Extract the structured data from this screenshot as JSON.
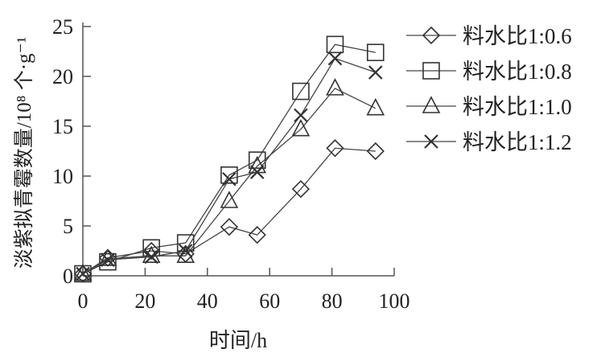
{
  "chart_data": {
    "type": "line",
    "title": "",
    "xlabel": "时间/h",
    "ylabel": "淡紫拟青霉数量/10⁸ 个·g⁻¹",
    "xlim": [
      0,
      100
    ],
    "ylim": [
      0,
      25
    ],
    "xticks": [
      "0",
      "20",
      "40",
      "60",
      "80",
      "100"
    ],
    "yticks": [
      "0",
      "5",
      "10",
      "15",
      "20",
      "25"
    ],
    "grid": false,
    "legend_position": "right",
    "x": [
      0,
      8,
      22,
      33,
      47,
      56,
      70,
      81,
      94
    ],
    "series": [
      {
        "name": "料水比1:0.6",
        "marker": "diamond",
        "values": [
          0.2,
          1.8,
          2.5,
          2.2,
          4.9,
          4.1,
          8.7,
          12.8,
          12.5
        ]
      },
      {
        "name": "料水比1:0.8",
        "marker": "square",
        "values": [
          0.2,
          1.4,
          2.8,
          3.3,
          10.1,
          11.6,
          18.5,
          23.2,
          22.4
        ]
      },
      {
        "name": "料水比1:1.0",
        "marker": "triangle",
        "values": [
          0.2,
          1.7,
          2.0,
          2.0,
          7.5,
          11.0,
          14.7,
          18.8,
          16.8
        ]
      },
      {
        "name": "料水比1:1.2",
        "marker": "cross",
        "values": [
          0.2,
          1.6,
          1.9,
          2.5,
          9.7,
          10.4,
          16.1,
          21.8,
          20.4
        ]
      }
    ],
    "colors": {
      "line": "#444444",
      "marker": "#333333"
    }
  }
}
